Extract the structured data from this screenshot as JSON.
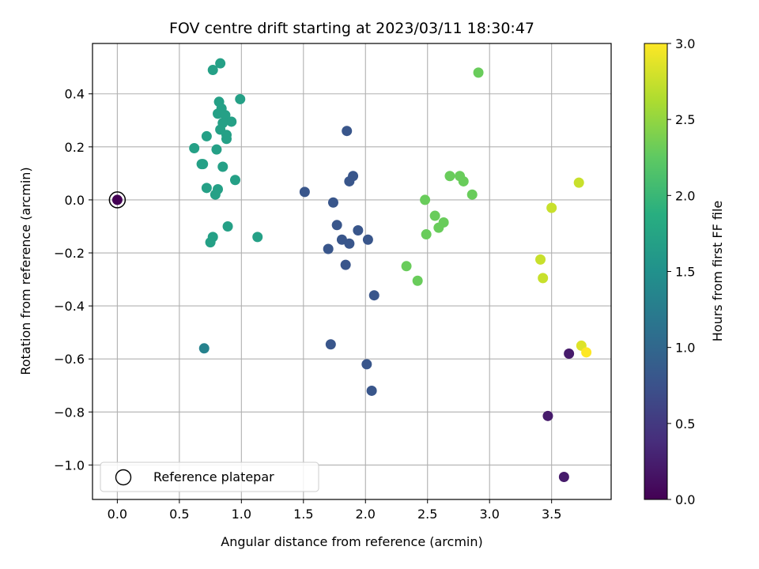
{
  "chart_data": {
    "type": "scatter",
    "title": "FOV centre drift starting at 2023/03/11 18:30:47",
    "xlabel": "Angular distance from reference (arcmin)",
    "ylabel": "Rotation from reference (arcmin)",
    "xlim": [
      -0.2,
      3.98
    ],
    "ylim": [
      -1.13,
      0.59
    ],
    "xticks": [
      0.0,
      0.5,
      1.0,
      1.5,
      2.0,
      2.5,
      3.0,
      3.5
    ],
    "xtick_labels": [
      "0.0",
      "0.5",
      "1.0",
      "1.5",
      "2.0",
      "2.5",
      "3.0",
      "3.5"
    ],
    "yticks": [
      0.4,
      0.2,
      0.0,
      -0.2,
      -0.4,
      -0.6,
      -0.8,
      -1.0
    ],
    "ytick_labels": [
      "0.4",
      "0.2",
      "0.0",
      "−0.2",
      "−0.4",
      "−0.6",
      "−0.8",
      "−1.0"
    ],
    "grid": true,
    "legend": {
      "location": "lower-left",
      "entries": [
        "Reference platepar"
      ]
    },
    "colorbar": {
      "label": "Hours from first FF file",
      "colormap": "viridis",
      "range": [
        0.0,
        3.0
      ],
      "ticks": [
        0.0,
        0.5,
        1.0,
        1.5,
        2.0,
        2.5,
        3.0
      ],
      "tick_labels": [
        "0.0",
        "0.5",
        "1.0",
        "1.5",
        "2.0",
        "2.5",
        "3.0"
      ]
    },
    "reference_point": {
      "name": "Reference platepar",
      "x": 0.0,
      "y": 0.0,
      "hours": 0.0
    },
    "points": [
      {
        "x": 3.47,
        "y": -0.815,
        "hours": 0.22
      },
      {
        "x": 3.6,
        "y": -1.045,
        "hours": 0.22
      },
      {
        "x": 3.64,
        "y": -0.58,
        "hours": 0.22
      },
      {
        "x": 1.85,
        "y": 0.26,
        "hours": 0.8
      },
      {
        "x": 1.9,
        "y": 0.09,
        "hours": 0.8
      },
      {
        "x": 1.87,
        "y": 0.07,
        "hours": 0.8
      },
      {
        "x": 1.51,
        "y": 0.03,
        "hours": 0.8
      },
      {
        "x": 1.74,
        "y": -0.01,
        "hours": 0.8
      },
      {
        "x": 1.77,
        "y": -0.095,
        "hours": 0.8
      },
      {
        "x": 1.94,
        "y": -0.115,
        "hours": 0.8
      },
      {
        "x": 1.81,
        "y": -0.15,
        "hours": 0.8
      },
      {
        "x": 2.02,
        "y": -0.15,
        "hours": 0.8
      },
      {
        "x": 1.87,
        "y": -0.165,
        "hours": 0.8
      },
      {
        "x": 1.7,
        "y": -0.185,
        "hours": 0.8
      },
      {
        "x": 1.84,
        "y": -0.245,
        "hours": 0.8
      },
      {
        "x": 2.07,
        "y": -0.36,
        "hours": 0.8
      },
      {
        "x": 1.72,
        "y": -0.545,
        "hours": 0.8
      },
      {
        "x": 2.01,
        "y": -0.62,
        "hours": 0.8
      },
      {
        "x": 2.05,
        "y": -0.72,
        "hours": 0.8
      },
      {
        "x": 0.7,
        "y": -0.56,
        "hours": 1.32
      },
      {
        "x": 0.83,
        "y": 0.515,
        "hours": 1.7
      },
      {
        "x": 0.77,
        "y": 0.49,
        "hours": 1.7
      },
      {
        "x": 0.99,
        "y": 0.38,
        "hours": 1.7
      },
      {
        "x": 0.82,
        "y": 0.37,
        "hours": 1.7
      },
      {
        "x": 0.84,
        "y": 0.345,
        "hours": 1.7
      },
      {
        "x": 0.81,
        "y": 0.325,
        "hours": 1.7
      },
      {
        "x": 0.87,
        "y": 0.32,
        "hours": 1.7
      },
      {
        "x": 0.92,
        "y": 0.295,
        "hours": 1.7
      },
      {
        "x": 0.85,
        "y": 0.29,
        "hours": 1.7
      },
      {
        "x": 0.83,
        "y": 0.265,
        "hours": 1.7
      },
      {
        "x": 0.88,
        "y": 0.245,
        "hours": 1.7
      },
      {
        "x": 0.72,
        "y": 0.24,
        "hours": 1.7
      },
      {
        "x": 0.88,
        "y": 0.23,
        "hours": 1.7
      },
      {
        "x": 0.62,
        "y": 0.195,
        "hours": 1.7
      },
      {
        "x": 0.8,
        "y": 0.19,
        "hours": 1.7
      },
      {
        "x": 0.68,
        "y": 0.135,
        "hours": 1.7
      },
      {
        "x": 0.69,
        "y": 0.135,
        "hours": 1.7
      },
      {
        "x": 0.85,
        "y": 0.125,
        "hours": 1.7
      },
      {
        "x": 0.95,
        "y": 0.075,
        "hours": 1.7
      },
      {
        "x": 0.72,
        "y": 0.045,
        "hours": 1.7
      },
      {
        "x": 0.81,
        "y": 0.04,
        "hours": 1.7
      },
      {
        "x": 0.79,
        "y": 0.02,
        "hours": 1.7
      },
      {
        "x": 0.89,
        "y": -0.1,
        "hours": 1.7
      },
      {
        "x": 1.13,
        "y": -0.14,
        "hours": 1.7
      },
      {
        "x": 0.77,
        "y": -0.14,
        "hours": 1.7
      },
      {
        "x": 0.75,
        "y": -0.16,
        "hours": 1.7
      },
      {
        "x": 2.91,
        "y": 0.48,
        "hours": 2.3
      },
      {
        "x": 2.68,
        "y": 0.09,
        "hours": 2.3
      },
      {
        "x": 2.76,
        "y": 0.09,
        "hours": 2.3
      },
      {
        "x": 2.79,
        "y": 0.07,
        "hours": 2.3
      },
      {
        "x": 2.86,
        "y": 0.02,
        "hours": 2.3
      },
      {
        "x": 2.48,
        "y": 0.0,
        "hours": 2.3
      },
      {
        "x": 2.56,
        "y": -0.06,
        "hours": 2.3
      },
      {
        "x": 2.63,
        "y": -0.085,
        "hours": 2.3
      },
      {
        "x": 2.59,
        "y": -0.105,
        "hours": 2.3
      },
      {
        "x": 2.49,
        "y": -0.13,
        "hours": 2.3
      },
      {
        "x": 2.33,
        "y": -0.25,
        "hours": 2.3
      },
      {
        "x": 2.42,
        "y": -0.305,
        "hours": 2.3
      },
      {
        "x": 3.72,
        "y": 0.065,
        "hours": 2.75
      },
      {
        "x": 3.5,
        "y": -0.03,
        "hours": 2.75
      },
      {
        "x": 3.41,
        "y": -0.225,
        "hours": 2.75
      },
      {
        "x": 3.43,
        "y": -0.295,
        "hours": 2.75
      },
      {
        "x": 3.74,
        "y": -0.55,
        "hours": 2.85
      },
      {
        "x": 3.78,
        "y": -0.575,
        "hours": 3.0
      }
    ]
  }
}
